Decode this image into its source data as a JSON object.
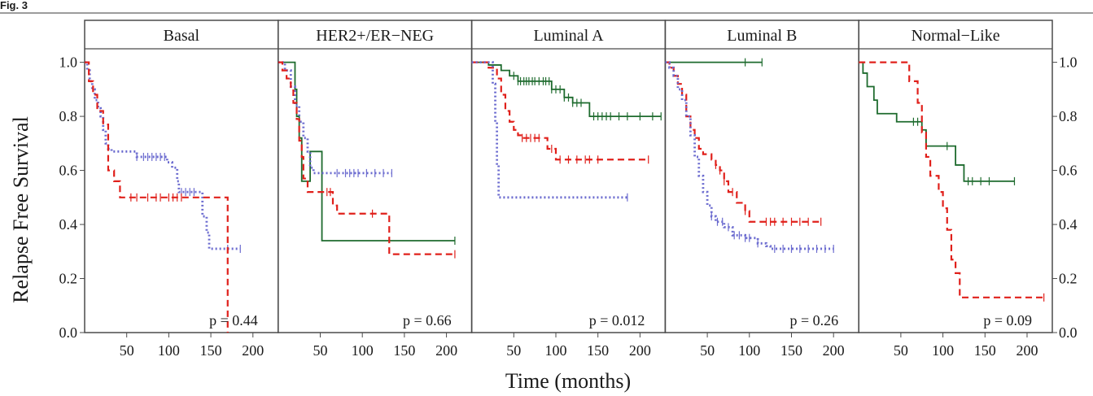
{
  "figure_label": "Fig. 3",
  "colors": {
    "frame": "#4a4a4a",
    "solid": "#1e6b2e",
    "dashed": "#e0201b",
    "dotted": "#6b6bcf"
  },
  "chart_data": {
    "type": "line",
    "xlabel": "Time (months)",
    "ylabel": "Relapse Free Survival",
    "xlim": [
      0,
      230
    ],
    "ylim": [
      0,
      1.05
    ],
    "x_ticks": [
      50,
      100,
      150,
      200
    ],
    "y_ticks": [
      "0.0",
      "0.2",
      "0.4",
      "0.6",
      "0.8",
      "1.0"
    ],
    "grid": false,
    "panels": [
      {
        "title": "Basal",
        "p_value": "p = 0.44",
        "series": [
          {
            "style": "dotted",
            "points": [
              [
                0,
                1
              ],
              [
                3,
                0.97
              ],
              [
                6,
                0.93
              ],
              [
                9,
                0.9
              ],
              [
                12,
                0.86
              ],
              [
                16,
                0.83
              ],
              [
                19,
                0.8
              ],
              [
                22,
                0.75
              ],
              [
                25,
                0.7
              ],
              [
                28,
                0.68
              ],
              [
                32,
                0.67
              ],
              [
                60,
                0.67
              ],
              [
                62,
                0.65
              ],
              [
                95,
                0.65
              ],
              [
                98,
                0.63
              ],
              [
                104,
                0.61
              ],
              [
                110,
                0.56
              ],
              [
                112,
                0.52
              ],
              [
                135,
                0.52
              ],
              [
                140,
                0.43
              ],
              [
                145,
                0.37
              ],
              [
                148,
                0.31
              ],
              [
                185,
                0.31
              ]
            ],
            "censor": [
              62,
              70,
              75,
              80,
              85,
              90,
              95,
              115,
              120,
              125,
              130,
              170,
              185
            ]
          },
          {
            "style": "dashed",
            "points": [
              [
                0,
                1
              ],
              [
                5,
                0.93
              ],
              [
                10,
                0.88
              ],
              [
                15,
                0.82
              ],
              [
                22,
                0.77
              ],
              [
                28,
                0.6
              ],
              [
                35,
                0.56
              ],
              [
                42,
                0.5
              ],
              [
                166,
                0.5
              ],
              [
                170,
                0
              ]
            ],
            "censor": [
              55,
              62,
              75,
              85,
              90,
              100,
              105,
              110,
              115
            ]
          }
        ]
      },
      {
        "title": "HER2+/ER−NEG",
        "p_value": "p = 0.66",
        "series": [
          {
            "style": "solid",
            "points": [
              [
                0,
                1
              ],
              [
                18,
                1
              ],
              [
                20,
                0.9
              ],
              [
                22,
                0.8
              ],
              [
                25,
                0.72
              ],
              [
                28,
                0.56
              ],
              [
                35,
                0.56
              ],
              [
                38,
                0.67
              ],
              [
                50,
                0.67
              ],
              [
                52,
                0.34
              ],
              [
                210,
                0.34
              ]
            ],
            "censor": [
              210
            ]
          },
          {
            "style": "dotted",
            "points": [
              [
                0,
                1
              ],
              [
                8,
                0.97
              ],
              [
                15,
                0.91
              ],
              [
                20,
                0.84
              ],
              [
                25,
                0.78
              ],
              [
                30,
                0.72
              ],
              [
                35,
                0.67
              ],
              [
                38,
                0.61
              ],
              [
                42,
                0.59
              ],
              [
                135,
                0.59
              ]
            ],
            "censor": [
              70,
              80,
              85,
              90,
              95,
              105,
              115,
              125,
              135
            ]
          },
          {
            "style": "dashed",
            "points": [
              [
                0,
                1
              ],
              [
                5,
                0.97
              ],
              [
                10,
                0.94
              ],
              [
                15,
                0.9
              ],
              [
                18,
                0.85
              ],
              [
                22,
                0.79
              ],
              [
                25,
                0.71
              ],
              [
                28,
                0.65
              ],
              [
                30,
                0.57
              ],
              [
                35,
                0.52
              ],
              [
                55,
                0.52
              ],
              [
                65,
                0.47
              ],
              [
                70,
                0.44
              ],
              [
                128,
                0.44
              ],
              [
                132,
                0.29
              ],
              [
                210,
                0.29
              ]
            ],
            "censor": [
              58,
              62,
              112,
              210
            ]
          }
        ]
      },
      {
        "title": "Luminal A",
        "p_value": "p = 0.012",
        "series": [
          {
            "style": "solid",
            "points": [
              [
                0,
                1
              ],
              [
                20,
                0.99
              ],
              [
                35,
                0.97
              ],
              [
                45,
                0.95
              ],
              [
                55,
                0.93
              ],
              [
                85,
                0.93
              ],
              [
                95,
                0.9
              ],
              [
                110,
                0.87
              ],
              [
                120,
                0.85
              ],
              [
                130,
                0.85
              ],
              [
                140,
                0.8
              ],
              [
                225,
                0.8
              ]
            ],
            "censor": [
              50,
              55,
              58,
              62,
              65,
              68,
              72,
              75,
              80,
              85,
              88,
              92,
              95,
              100,
              105,
              110,
              115,
              120,
              125,
              130,
              145,
              150,
              155,
              160,
              165,
              175,
              185,
              200,
              215,
              225
            ]
          },
          {
            "style": "dashed",
            "points": [
              [
                0,
                1
              ],
              [
                20,
                0.98
              ],
              [
                30,
                0.94
              ],
              [
                35,
                0.88
              ],
              [
                40,
                0.82
              ],
              [
                45,
                0.78
              ],
              [
                50,
                0.75
              ],
              [
                55,
                0.73
              ],
              [
                60,
                0.72
              ],
              [
                85,
                0.72
              ],
              [
                90,
                0.68
              ],
              [
                100,
                0.64
              ],
              [
                210,
                0.64
              ]
            ],
            "censor": [
              60,
              65,
              70,
              75,
              80,
              95,
              105,
              115,
              125,
              135,
              140,
              150,
              210
            ]
          },
          {
            "style": "dotted",
            "points": [
              [
                0,
                1
              ],
              [
                22,
                1
              ],
              [
                25,
                0.92
              ],
              [
                28,
                0.78
              ],
              [
                30,
                0.62
              ],
              [
                32,
                0.5
              ],
              [
                185,
                0.5
              ]
            ],
            "censor": [
              185
            ]
          }
        ]
      },
      {
        "title": "Luminal B",
        "p_value": "p = 0.26",
        "series": [
          {
            "style": "solid",
            "points": [
              [
                0,
                1
              ],
              [
                115,
                1
              ]
            ],
            "censor": [
              95,
              115
            ]
          },
          {
            "style": "dashed",
            "points": [
              [
                0,
                1
              ],
              [
                5,
                0.98
              ],
              [
                10,
                0.95
              ],
              [
                15,
                0.92
              ],
              [
                20,
                0.88
              ],
              [
                25,
                0.8
              ],
              [
                30,
                0.75
              ],
              [
                35,
                0.72
              ],
              [
                40,
                0.68
              ],
              [
                45,
                0.66
              ],
              [
                55,
                0.64
              ],
              [
                60,
                0.62
              ],
              [
                65,
                0.6
              ],
              [
                70,
                0.56
              ],
              [
                75,
                0.52
              ],
              [
                85,
                0.48
              ],
              [
                95,
                0.45
              ],
              [
                100,
                0.41
              ],
              [
                185,
                0.41
              ]
            ],
            "censor": [
              60,
              65,
              70,
              80,
              95,
              120,
              125,
              130,
              140,
              150,
              160,
              170,
              185
            ]
          },
          {
            "style": "dotted",
            "points": [
              [
                0,
                1
              ],
              [
                5,
                0.98
              ],
              [
                10,
                0.95
              ],
              [
                15,
                0.9
              ],
              [
                20,
                0.86
              ],
              [
                25,
                0.8
              ],
              [
                30,
                0.73
              ],
              [
                35,
                0.65
              ],
              [
                40,
                0.58
              ],
              [
                45,
                0.52
              ],
              [
                50,
                0.47
              ],
              [
                55,
                0.43
              ],
              [
                60,
                0.41
              ],
              [
                70,
                0.39
              ],
              [
                80,
                0.36
              ],
              [
                95,
                0.35
              ],
              [
                110,
                0.33
              ],
              [
                120,
                0.32
              ],
              [
                125,
                0.31
              ],
              [
                200,
                0.31
              ]
            ],
            "censor": [
              55,
              62,
              68,
              75,
              82,
              88,
              95,
              100,
              110,
              130,
              140,
              150,
              160,
              170,
              180,
              190,
              200
            ]
          }
        ]
      },
      {
        "title": "Normal−Like",
        "p_value": "p = 0.09",
        "series": [
          {
            "style": "solid",
            "points": [
              [
                0,
                1
              ],
              [
                5,
                0.96
              ],
              [
                10,
                0.91
              ],
              [
                18,
                0.86
              ],
              [
                22,
                0.81
              ],
              [
                40,
                0.81
              ],
              [
                45,
                0.78
              ],
              [
                70,
                0.78
              ],
              [
                75,
                0.75
              ],
              [
                80,
                0.69
              ],
              [
                110,
                0.69
              ],
              [
                115,
                0.62
              ],
              [
                125,
                0.56
              ],
              [
                185,
                0.56
              ]
            ],
            "censor": [
              65,
              70,
              105,
              130,
              135,
              145,
              155,
              185
            ]
          },
          {
            "style": "dashed",
            "points": [
              [
                0,
                1
              ],
              [
                35,
                1
              ],
              [
                50,
                1
              ],
              [
                60,
                0.93
              ],
              [
                70,
                0.85
              ],
              [
                75,
                0.74
              ],
              [
                80,
                0.65
              ],
              [
                85,
                0.58
              ],
              [
                95,
                0.52
              ],
              [
                100,
                0.46
              ],
              [
                105,
                0.38
              ],
              [
                110,
                0.27
              ],
              [
                115,
                0.22
              ],
              [
                120,
                0.13
              ],
              [
                220,
                0.13
              ]
            ],
            "censor": [
              220
            ]
          }
        ]
      }
    ]
  }
}
